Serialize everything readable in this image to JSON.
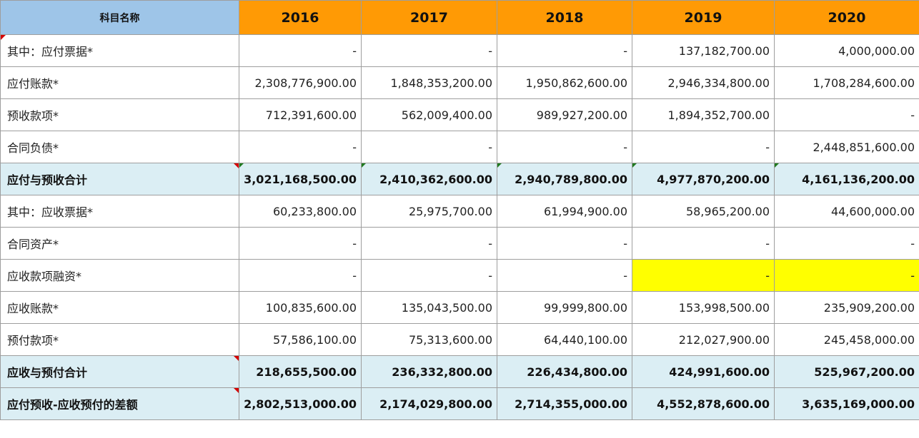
{
  "header": {
    "name_label": "科目名称",
    "years": [
      "2016",
      "2017",
      "2018",
      "2019",
      "2020"
    ]
  },
  "rows": [
    {
      "label": "其中：应付票据*",
      "values": [
        "-",
        "-",
        "-",
        "137,182,700.00",
        "4,000,000.00"
      ]
    },
    {
      "label": "应付账款*",
      "values": [
        "2,308,776,900.00",
        "1,848,353,200.00",
        "1,950,862,600.00",
        "2,946,334,800.00",
        "1,708,284,600.00"
      ]
    },
    {
      "label": "预收款项*",
      "values": [
        "712,391,600.00",
        "562,009,400.00",
        "989,927,200.00",
        "1,894,352,700.00",
        "-"
      ]
    },
    {
      "label": "合同负债*",
      "values": [
        "-",
        "-",
        "-",
        "-",
        "2,448,851,600.00"
      ]
    },
    {
      "label": "应付与预收合计",
      "values": [
        "3,021,168,500.00",
        "2,410,362,600.00",
        "2,940,789,800.00",
        "4,977,870,200.00",
        "4,161,136,200.00"
      ]
    },
    {
      "label": "其中：应收票据*",
      "values": [
        "60,233,800.00",
        "25,975,700.00",
        "61,994,900.00",
        "58,965,200.00",
        "44,600,000.00"
      ]
    },
    {
      "label": "合同资产*",
      "values": [
        "-",
        "-",
        "-",
        "-",
        "-"
      ]
    },
    {
      "label": "应收款项融资*",
      "values": [
        "-",
        "-",
        "-",
        "-",
        "-"
      ]
    },
    {
      "label": "应收账款*",
      "values": [
        "100,835,600.00",
        "135,043,500.00",
        "99,999,800.00",
        "153,998,500.00",
        "235,909,200.00"
      ]
    },
    {
      "label": "预付款项*",
      "values": [
        "57,586,100.00",
        "75,313,600.00",
        "64,440,100.00",
        "212,027,900.00",
        "245,458,000.00"
      ]
    },
    {
      "label": "应收与预付合计",
      "values": [
        "218,655,500.00",
        "236,332,800.00",
        "226,434,800.00",
        "424,991,600.00",
        "525,967,200.00"
      ]
    },
    {
      "label": "应付预收-应收预付的差额",
      "values": [
        "2,802,513,000.00",
        "2,174,029,800.00",
        "2,714,355,000.00",
        "4,552,878,600.00",
        "3,635,169,000.00"
      ]
    }
  ],
  "colors": {
    "header_name_bg": "#9ec5e8",
    "header_year_bg": "#ff9a05",
    "total_row_bg": "#dbeef4",
    "highlight_yellow": "#ffff00",
    "comment_marker": "#d40000"
  }
}
